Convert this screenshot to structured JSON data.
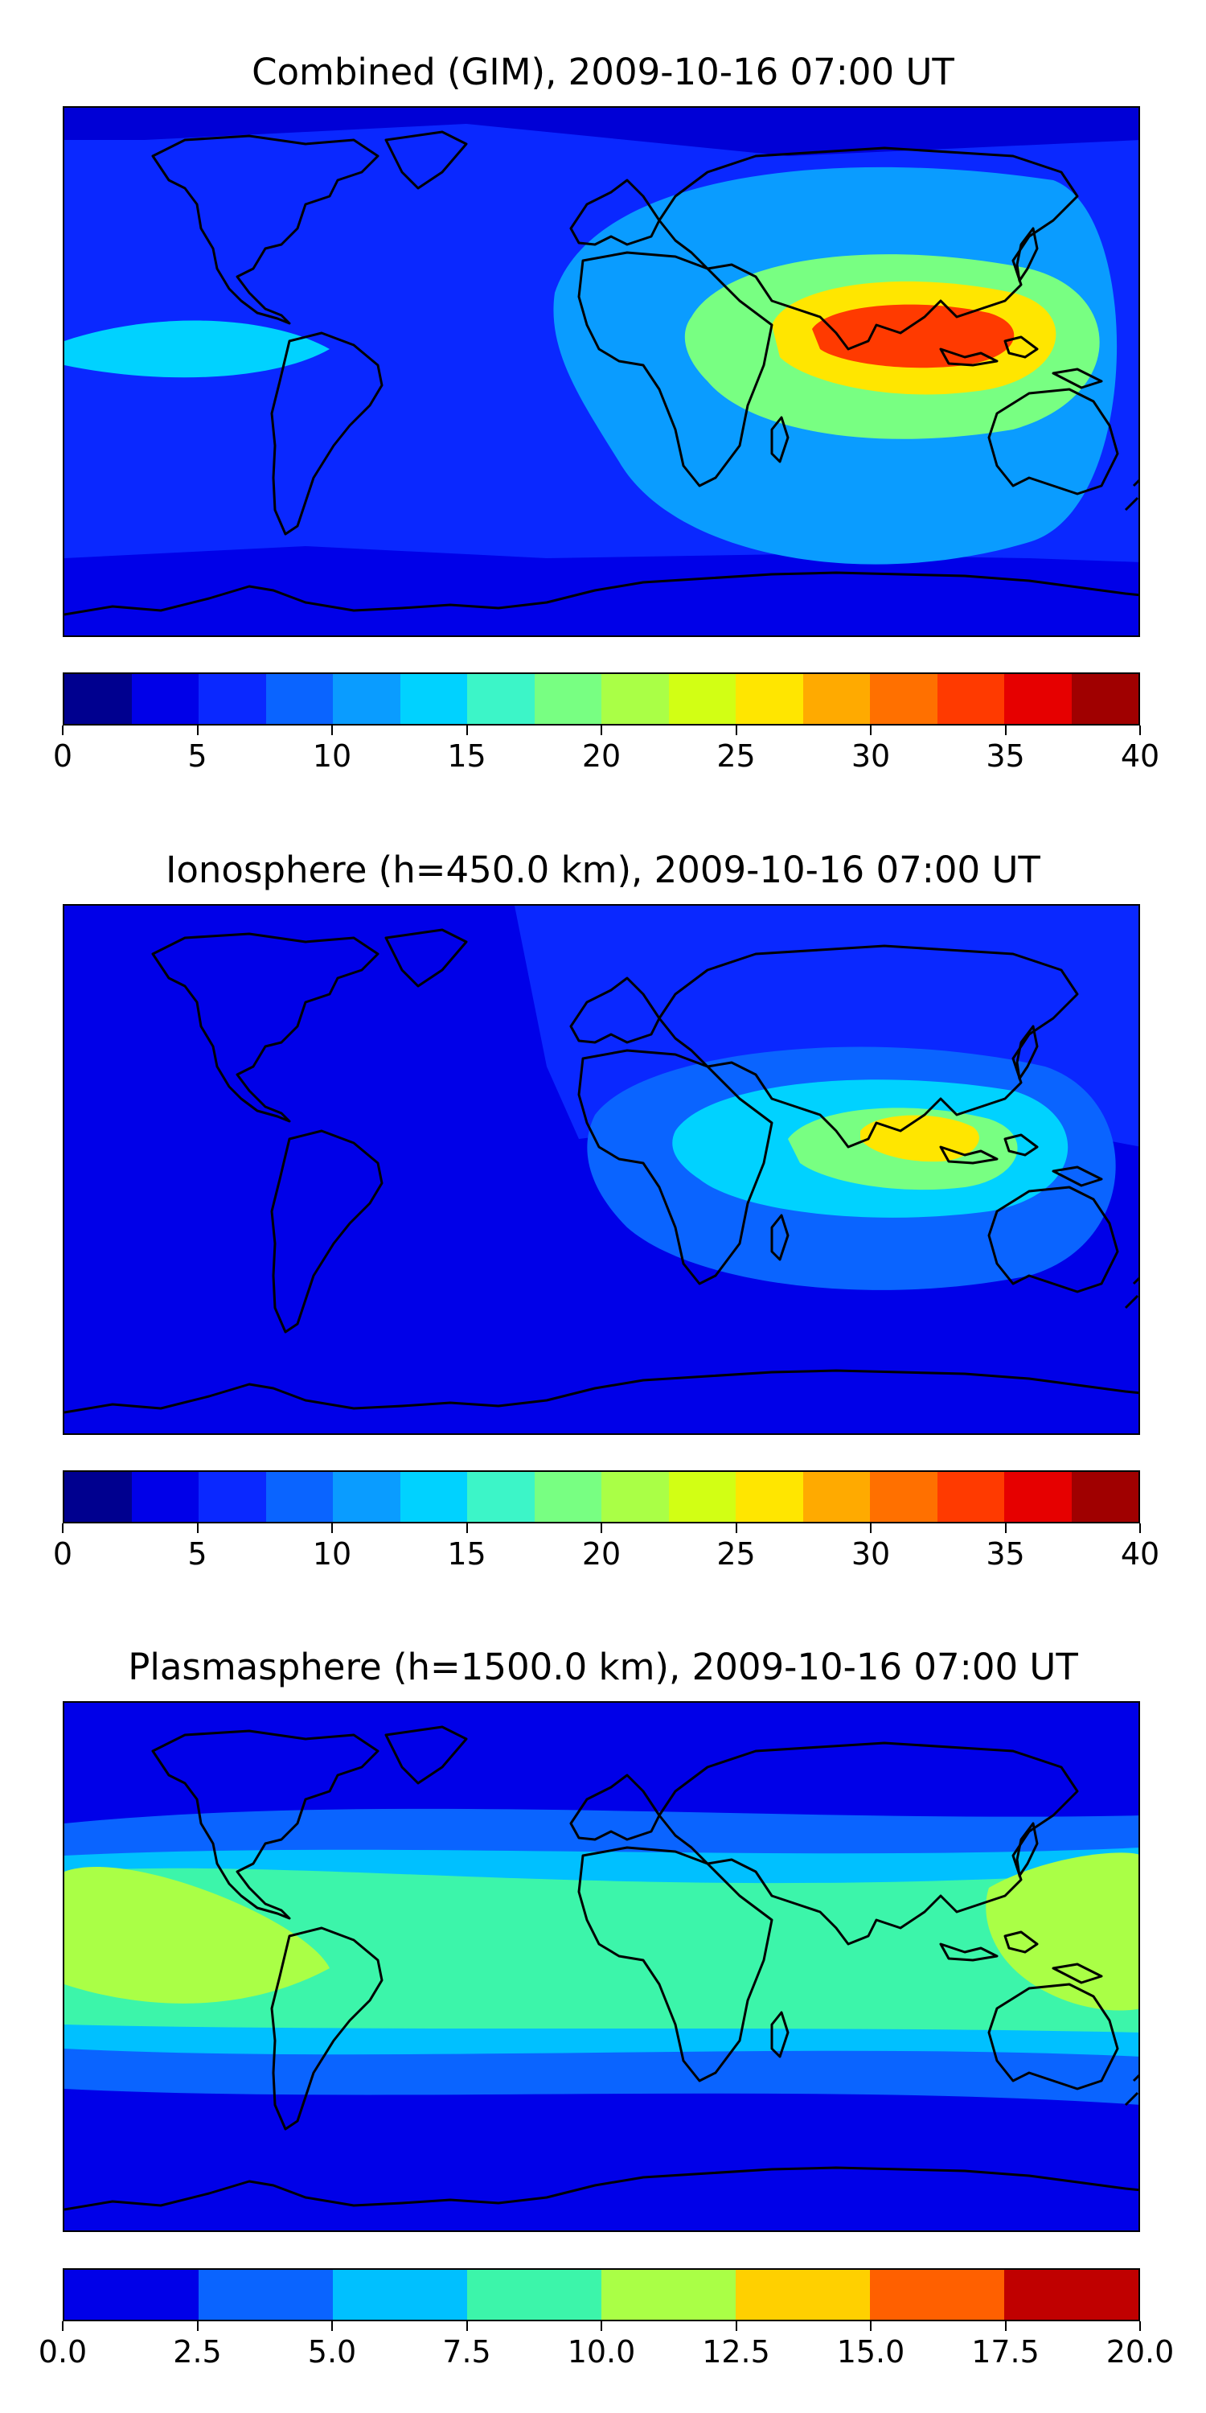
{
  "panels": [
    {
      "title": "Combined (GIM), 2009-10-16 07:00 UT",
      "colorbar": {
        "min": 0,
        "max": 40,
        "ticks": [
          "0",
          "5",
          "10",
          "15",
          "20",
          "25",
          "30",
          "35",
          "40"
        ],
        "colors": [
          "#00008f",
          "#0000e8",
          "#0a28ff",
          "#0a64ff",
          "#0a9cff",
          "#00d2ff",
          "#3cf5c8",
          "#78ff82",
          "#aaff46",
          "#d2ff14",
          "#ffe600",
          "#ffaa00",
          "#ff7000",
          "#ff3a00",
          "#e60000",
          "#a00000"
        ]
      },
      "map": {
        "background": "#0a28ff",
        "features": [
          {
            "region": "northern polar cap",
            "color": "#0000d6"
          },
          {
            "region": "southern polar belt",
            "color": "#0000e8"
          },
          {
            "region": "eastern Pacific band",
            "color": "#00d2ff"
          },
          {
            "region": "Africa / Indian Ocean halo",
            "color": "#0a9cff"
          },
          {
            "region": "Indian Ocean / South Asia band",
            "color": "#78ff82"
          },
          {
            "region": "South Asia core",
            "color": "#ffe600"
          },
          {
            "region": "Southeast Asia peak",
            "color": "#ff3a00"
          }
        ]
      }
    },
    {
      "title": "Ionosphere  (h=450.0 km), 2009-10-16 07:00 UT",
      "colorbar": {
        "min": 0,
        "max": 40,
        "ticks": [
          "0",
          "5",
          "10",
          "15",
          "20",
          "25",
          "30",
          "35",
          "40"
        ],
        "colors": [
          "#00008f",
          "#0000e8",
          "#0a28ff",
          "#0a64ff",
          "#0a9cff",
          "#00d2ff",
          "#3cf5c8",
          "#78ff82",
          "#aaff46",
          "#d2ff14",
          "#ffe600",
          "#ffaa00",
          "#ff7000",
          "#ff3a00",
          "#e60000",
          "#a00000"
        ]
      },
      "map": {
        "background": "#0000e8",
        "features": [
          {
            "region": "Eurasia / northern mid-latitudes",
            "color": "#0a28ff"
          },
          {
            "region": "Africa / Indian Ocean halo",
            "color": "#0a64ff"
          },
          {
            "region": "Indian Ocean band",
            "color": "#00d2ff"
          },
          {
            "region": "South Asia band",
            "color": "#78ff82"
          },
          {
            "region": "Southeast Asia peak",
            "color": "#ffe600"
          }
        ]
      }
    },
    {
      "title": "Plasmasphere (h=1500.0 km), 2009-10-16 07:00 UT",
      "colorbar": {
        "min": 0,
        "max": 20,
        "ticks": [
          "0.0",
          "2.5",
          "5.0",
          "7.5",
          "10.0",
          "12.5",
          "15.0",
          "17.5",
          "20.0"
        ],
        "colors": [
          "#0000e8",
          "#0a64ff",
          "#00c0ff",
          "#3cf5aa",
          "#aaff46",
          "#ffd000",
          "#ff6000",
          "#c00000"
        ]
      },
      "map": {
        "background": "#0000e8",
        "features": [
          {
            "region": "mid-latitude bands",
            "color": "#0a64ff"
          },
          {
            "region": "tropical band",
            "color": "#00c0ff"
          },
          {
            "region": "equatorial band",
            "color": "#3cf5aa"
          },
          {
            "region": "central Pacific maximum",
            "color": "#aaff46"
          },
          {
            "region": "western Pacific maximum",
            "color": "#aaff46"
          }
        ]
      }
    }
  ]
}
